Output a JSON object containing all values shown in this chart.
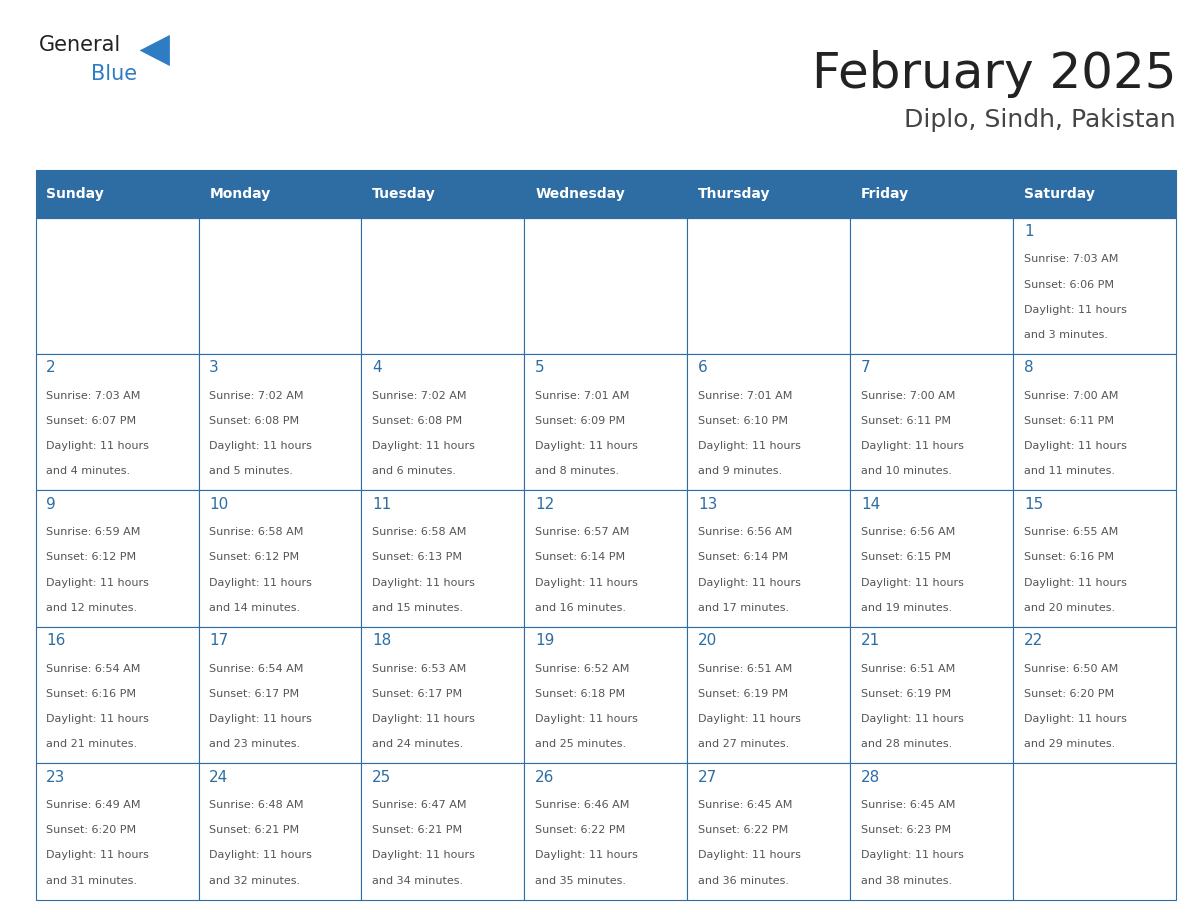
{
  "title": "February 2025",
  "subtitle": "Diplo, Sindh, Pakistan",
  "days_of_week": [
    "Sunday",
    "Monday",
    "Tuesday",
    "Wednesday",
    "Thursday",
    "Friday",
    "Saturday"
  ],
  "header_bg": "#2E6DA4",
  "header_text": "#FFFFFF",
  "cell_border": "#2E6DA4",
  "day_number_color": "#2E6DA4",
  "cell_text_color": "#555555",
  "title_color": "#222222",
  "subtitle_color": "#444444",
  "logo_general_color": "#222222",
  "logo_blue_color": "#2E7DC4",
  "calendar_data": [
    [
      null,
      null,
      null,
      null,
      null,
      null,
      {
        "day": 1,
        "sunrise": "7:03 AM",
        "sunset": "6:06 PM",
        "daylight_line1": "Daylight: 11 hours",
        "daylight_line2": "and 3 minutes."
      }
    ],
    [
      {
        "day": 2,
        "sunrise": "7:03 AM",
        "sunset": "6:07 PM",
        "daylight_line1": "Daylight: 11 hours",
        "daylight_line2": "and 4 minutes."
      },
      {
        "day": 3,
        "sunrise": "7:02 AM",
        "sunset": "6:08 PM",
        "daylight_line1": "Daylight: 11 hours",
        "daylight_line2": "and 5 minutes."
      },
      {
        "day": 4,
        "sunrise": "7:02 AM",
        "sunset": "6:08 PM",
        "daylight_line1": "Daylight: 11 hours",
        "daylight_line2": "and 6 minutes."
      },
      {
        "day": 5,
        "sunrise": "7:01 AM",
        "sunset": "6:09 PM",
        "daylight_line1": "Daylight: 11 hours",
        "daylight_line2": "and 8 minutes."
      },
      {
        "day": 6,
        "sunrise": "7:01 AM",
        "sunset": "6:10 PM",
        "daylight_line1": "Daylight: 11 hours",
        "daylight_line2": "and 9 minutes."
      },
      {
        "day": 7,
        "sunrise": "7:00 AM",
        "sunset": "6:11 PM",
        "daylight_line1": "Daylight: 11 hours",
        "daylight_line2": "and 10 minutes."
      },
      {
        "day": 8,
        "sunrise": "7:00 AM",
        "sunset": "6:11 PM",
        "daylight_line1": "Daylight: 11 hours",
        "daylight_line2": "and 11 minutes."
      }
    ],
    [
      {
        "day": 9,
        "sunrise": "6:59 AM",
        "sunset": "6:12 PM",
        "daylight_line1": "Daylight: 11 hours",
        "daylight_line2": "and 12 minutes."
      },
      {
        "day": 10,
        "sunrise": "6:58 AM",
        "sunset": "6:12 PM",
        "daylight_line1": "Daylight: 11 hours",
        "daylight_line2": "and 14 minutes."
      },
      {
        "day": 11,
        "sunrise": "6:58 AM",
        "sunset": "6:13 PM",
        "daylight_line1": "Daylight: 11 hours",
        "daylight_line2": "and 15 minutes."
      },
      {
        "day": 12,
        "sunrise": "6:57 AM",
        "sunset": "6:14 PM",
        "daylight_line1": "Daylight: 11 hours",
        "daylight_line2": "and 16 minutes."
      },
      {
        "day": 13,
        "sunrise": "6:56 AM",
        "sunset": "6:14 PM",
        "daylight_line1": "Daylight: 11 hours",
        "daylight_line2": "and 17 minutes."
      },
      {
        "day": 14,
        "sunrise": "6:56 AM",
        "sunset": "6:15 PM",
        "daylight_line1": "Daylight: 11 hours",
        "daylight_line2": "and 19 minutes."
      },
      {
        "day": 15,
        "sunrise": "6:55 AM",
        "sunset": "6:16 PM",
        "daylight_line1": "Daylight: 11 hours",
        "daylight_line2": "and 20 minutes."
      }
    ],
    [
      {
        "day": 16,
        "sunrise": "6:54 AM",
        "sunset": "6:16 PM",
        "daylight_line1": "Daylight: 11 hours",
        "daylight_line2": "and 21 minutes."
      },
      {
        "day": 17,
        "sunrise": "6:54 AM",
        "sunset": "6:17 PM",
        "daylight_line1": "Daylight: 11 hours",
        "daylight_line2": "and 23 minutes."
      },
      {
        "day": 18,
        "sunrise": "6:53 AM",
        "sunset": "6:17 PM",
        "daylight_line1": "Daylight: 11 hours",
        "daylight_line2": "and 24 minutes."
      },
      {
        "day": 19,
        "sunrise": "6:52 AM",
        "sunset": "6:18 PM",
        "daylight_line1": "Daylight: 11 hours",
        "daylight_line2": "and 25 minutes."
      },
      {
        "day": 20,
        "sunrise": "6:51 AM",
        "sunset": "6:19 PM",
        "daylight_line1": "Daylight: 11 hours",
        "daylight_line2": "and 27 minutes."
      },
      {
        "day": 21,
        "sunrise": "6:51 AM",
        "sunset": "6:19 PM",
        "daylight_line1": "Daylight: 11 hours",
        "daylight_line2": "and 28 minutes."
      },
      {
        "day": 22,
        "sunrise": "6:50 AM",
        "sunset": "6:20 PM",
        "daylight_line1": "Daylight: 11 hours",
        "daylight_line2": "and 29 minutes."
      }
    ],
    [
      {
        "day": 23,
        "sunrise": "6:49 AM",
        "sunset": "6:20 PM",
        "daylight_line1": "Daylight: 11 hours",
        "daylight_line2": "and 31 minutes."
      },
      {
        "day": 24,
        "sunrise": "6:48 AM",
        "sunset": "6:21 PM",
        "daylight_line1": "Daylight: 11 hours",
        "daylight_line2": "and 32 minutes."
      },
      {
        "day": 25,
        "sunrise": "6:47 AM",
        "sunset": "6:21 PM",
        "daylight_line1": "Daylight: 11 hours",
        "daylight_line2": "and 34 minutes."
      },
      {
        "day": 26,
        "sunrise": "6:46 AM",
        "sunset": "6:22 PM",
        "daylight_line1": "Daylight: 11 hours",
        "daylight_line2": "and 35 minutes."
      },
      {
        "day": 27,
        "sunrise": "6:45 AM",
        "sunset": "6:22 PM",
        "daylight_line1": "Daylight: 11 hours",
        "daylight_line2": "and 36 minutes."
      },
      {
        "day": 28,
        "sunrise": "6:45 AM",
        "sunset": "6:23 PM",
        "daylight_line1": "Daylight: 11 hours",
        "daylight_line2": "and 38 minutes."
      },
      null
    ]
  ]
}
